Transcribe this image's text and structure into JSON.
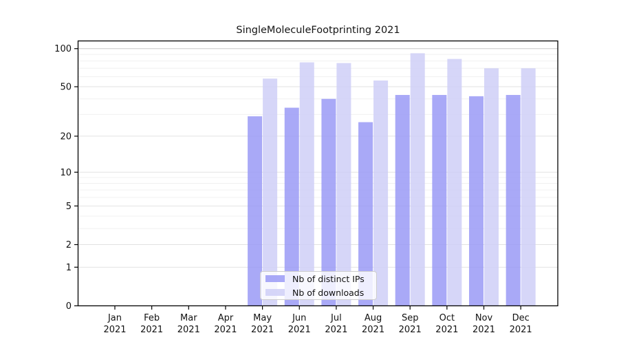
{
  "figure": {
    "background": "#ffffff",
    "axis_color": "#000000",
    "gridline_minor_color": "#f0f0f0",
    "gridline_major_color": "#e2e2e2",
    "gridline_top_color": "#c9c9c9"
  },
  "chart_data": {
    "type": "bar",
    "title": "SingleMoleculeFootprinting 2021",
    "categories": [
      "Jan 2021",
      "Feb 2021",
      "Mar 2021",
      "Apr 2021",
      "May 2021",
      "Jun 2021",
      "Jul 2021",
      "Aug 2021",
      "Sep 2021",
      "Oct 2021",
      "Nov 2021",
      "Dec 2021"
    ],
    "series": [
      {
        "name": "Nb of distinct IPs",
        "color": "#9696f5",
        "values": [
          0,
          0,
          0,
          0,
          29,
          34,
          40,
          26,
          43,
          43,
          42,
          43
        ]
      },
      {
        "name": "Nb of downloads",
        "color": "#cdcdf7",
        "values": [
          0,
          0,
          0,
          0,
          58,
          78,
          77,
          56,
          92,
          83,
          70,
          70
        ]
      }
    ],
    "bar_opacity": 0.82,
    "y_axis": {
      "scale": "log1p",
      "ticks": [
        0,
        1,
        2,
        5,
        10,
        20,
        50,
        100
      ],
      "ylim": [
        0,
        115
      ],
      "label": ""
    },
    "x_axis": {
      "label": "",
      "year_line": "2021"
    },
    "legend": {
      "position": "lower center"
    },
    "grid": true
  }
}
